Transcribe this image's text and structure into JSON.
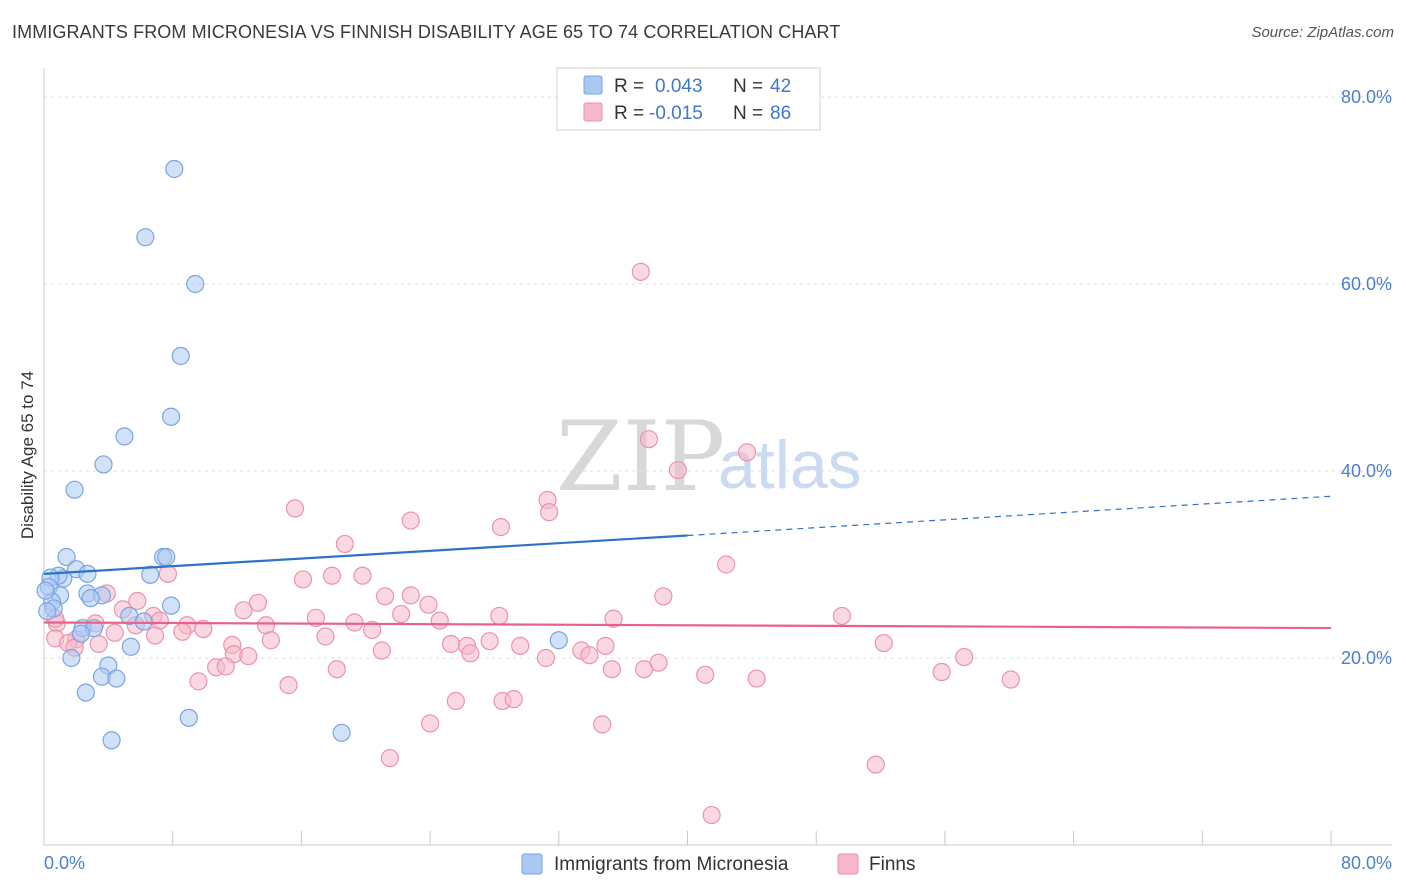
{
  "header": {
    "title": "IMMIGRANTS FROM MICRONESIA VS FINNISH DISABILITY AGE 65 TO 74 CORRELATION CHART",
    "source": "Source: ZipAtlas.com"
  },
  "watermark": {
    "zip": "ZIP",
    "atlas": "atlas"
  },
  "legend": {
    "rows": [
      {
        "r_label": "R =",
        "r_value": "0.043",
        "n_label": "N =",
        "n_value": "42",
        "color": "#a9c8f2"
      },
      {
        "r_label": "R =",
        "r_value": "-0.015",
        "n_label": "N =",
        "n_value": "86",
        "color": "#f6b8ca"
      }
    ]
  },
  "bottom_legend": [
    "Immigrants from Micronesia",
    "Finns"
  ],
  "colors": {
    "blue_fill": "#a9c8f2",
    "blue_stroke": "#7aa6e0",
    "blue_line": "#2f72c8",
    "pink_fill": "#f6b8ca",
    "pink_stroke": "#ec92ad",
    "pink_line": "#e8618c",
    "accent_text": "#3e78cc",
    "grid": "#dedede"
  },
  "chart_data": {
    "type": "scatter",
    "title": "IMMIGRANTS FROM MICRONESIA VS FINNISH DISABILITY AGE 65 TO 74 CORRELATION CHART",
    "xlabel": "",
    "ylabel": "Disability Age 65 to 74",
    "xlim": [
      0,
      80
    ],
    "ylim": [
      0,
      80
    ],
    "x_tick_labels": [
      "0.0%",
      "80.0%"
    ],
    "y_tick_values": [
      20,
      40,
      60,
      80
    ],
    "y_tick_labels": [
      "20.0%",
      "40.0%",
      "60.0%",
      "80.0%"
    ],
    "grid": true,
    "legend_position": "top-center",
    "series": [
      {
        "name": "Immigrants from Micronesia",
        "r": 0.043,
        "n": 42,
        "trend": {
          "x0": 0,
          "y0": 29.0,
          "x1": 40,
          "y1": 33.1,
          "dashed_to_x": 80,
          "dashed_to_y": 37.3
        },
        "points": [
          [
            8.1,
            72.3
          ],
          [
            6.3,
            65.0
          ],
          [
            9.4,
            60.0
          ],
          [
            8.5,
            52.3
          ],
          [
            7.9,
            45.8
          ],
          [
            5.0,
            43.7
          ],
          [
            3.7,
            40.7
          ],
          [
            1.9,
            38.0
          ],
          [
            1.4,
            30.8
          ],
          [
            2.0,
            29.5
          ],
          [
            2.7,
            29.0
          ],
          [
            1.2,
            28.5
          ],
          [
            0.9,
            28.8
          ],
          [
            0.4,
            28.6
          ],
          [
            0.3,
            27.6
          ],
          [
            1.0,
            26.7
          ],
          [
            2.7,
            26.9
          ],
          [
            3.6,
            26.7
          ],
          [
            2.9,
            26.4
          ],
          [
            0.5,
            26.0
          ],
          [
            0.6,
            25.3
          ],
          [
            0.2,
            25.0
          ],
          [
            7.4,
            30.8
          ],
          [
            7.6,
            30.8
          ],
          [
            6.6,
            28.9
          ],
          [
            7.9,
            25.6
          ],
          [
            5.3,
            24.5
          ],
          [
            6.2,
            23.9
          ],
          [
            2.4,
            23.2
          ],
          [
            3.1,
            23.2
          ],
          [
            2.3,
            22.6
          ],
          [
            5.4,
            21.2
          ],
          [
            1.7,
            20.0
          ],
          [
            4.0,
            19.2
          ],
          [
            3.6,
            18.0
          ],
          [
            4.5,
            17.8
          ],
          [
            2.6,
            16.3
          ],
          [
            9.0,
            13.6
          ],
          [
            4.2,
            11.2
          ],
          [
            18.5,
            12.0
          ],
          [
            32.0,
            21.9
          ],
          [
            0.1,
            27.2
          ]
        ]
      },
      {
        "name": "Finns",
        "r": -0.015,
        "n": 86,
        "trend": {
          "x0": 0,
          "y0": 23.8,
          "x1": 80,
          "y1": 23.2
        },
        "points": [
          [
            37.1,
            61.3
          ],
          [
            43.7,
            42.0
          ],
          [
            37.6,
            43.4
          ],
          [
            39.4,
            40.1
          ],
          [
            31.3,
            36.9
          ],
          [
            31.4,
            35.6
          ],
          [
            15.6,
            36.0
          ],
          [
            22.8,
            34.7
          ],
          [
            28.4,
            34.0
          ],
          [
            18.7,
            32.2
          ],
          [
            42.4,
            30.0
          ],
          [
            7.7,
            29.0
          ],
          [
            16.1,
            28.4
          ],
          [
            17.9,
            28.8
          ],
          [
            19.8,
            28.8
          ],
          [
            3.9,
            26.9
          ],
          [
            21.2,
            26.6
          ],
          [
            22.8,
            26.7
          ],
          [
            23.9,
            25.7
          ],
          [
            38.5,
            26.6
          ],
          [
            5.8,
            26.1
          ],
          [
            13.3,
            25.9
          ],
          [
            4.9,
            25.2
          ],
          [
            6.8,
            24.5
          ],
          [
            12.4,
            25.1
          ],
          [
            16.9,
            24.3
          ],
          [
            22.2,
            24.7
          ],
          [
            24.6,
            24.0
          ],
          [
            28.3,
            24.5
          ],
          [
            35.4,
            24.2
          ],
          [
            49.6,
            24.5
          ],
          [
            0.8,
            23.7
          ],
          [
            3.2,
            23.7
          ],
          [
            5.7,
            23.5
          ],
          [
            7.2,
            24.0
          ],
          [
            8.9,
            23.5
          ],
          [
            9.9,
            23.1
          ],
          [
            13.8,
            23.5
          ],
          [
            19.3,
            23.8
          ],
          [
            20.4,
            23.0
          ],
          [
            4.4,
            22.7
          ],
          [
            6.9,
            22.4
          ],
          [
            8.6,
            22.8
          ],
          [
            17.5,
            22.3
          ],
          [
            2.0,
            22.0
          ],
          [
            0.7,
            22.1
          ],
          [
            1.5,
            21.6
          ],
          [
            14.1,
            21.9
          ],
          [
            11.7,
            21.4
          ],
          [
            25.3,
            21.5
          ],
          [
            26.3,
            21.3
          ],
          [
            27.7,
            21.8
          ],
          [
            29.6,
            21.3
          ],
          [
            34.9,
            21.3
          ],
          [
            33.4,
            20.8
          ],
          [
            52.2,
            21.6
          ],
          [
            1.9,
            21.1
          ],
          [
            11.8,
            20.4
          ],
          [
            12.7,
            20.2
          ],
          [
            21.0,
            20.8
          ],
          [
            26.5,
            20.5
          ],
          [
            31.2,
            20.0
          ],
          [
            33.9,
            20.3
          ],
          [
            57.2,
            20.1
          ],
          [
            10.7,
            19.0
          ],
          [
            11.3,
            19.1
          ],
          [
            18.2,
            18.8
          ],
          [
            35.3,
            18.8
          ],
          [
            37.3,
            18.8
          ],
          [
            38.2,
            19.5
          ],
          [
            41.1,
            18.2
          ],
          [
            44.3,
            17.8
          ],
          [
            55.8,
            18.5
          ],
          [
            60.1,
            17.7
          ],
          [
            9.6,
            17.5
          ],
          [
            15.2,
            17.1
          ],
          [
            25.6,
            15.4
          ],
          [
            28.5,
            15.4
          ],
          [
            29.2,
            15.6
          ],
          [
            24.0,
            13.0
          ],
          [
            34.7,
            12.9
          ],
          [
            21.5,
            9.3
          ],
          [
            51.7,
            8.6
          ],
          [
            41.5,
            3.2
          ],
          [
            0.7,
            24.2
          ],
          [
            3.4,
            21.5
          ]
        ]
      }
    ]
  }
}
